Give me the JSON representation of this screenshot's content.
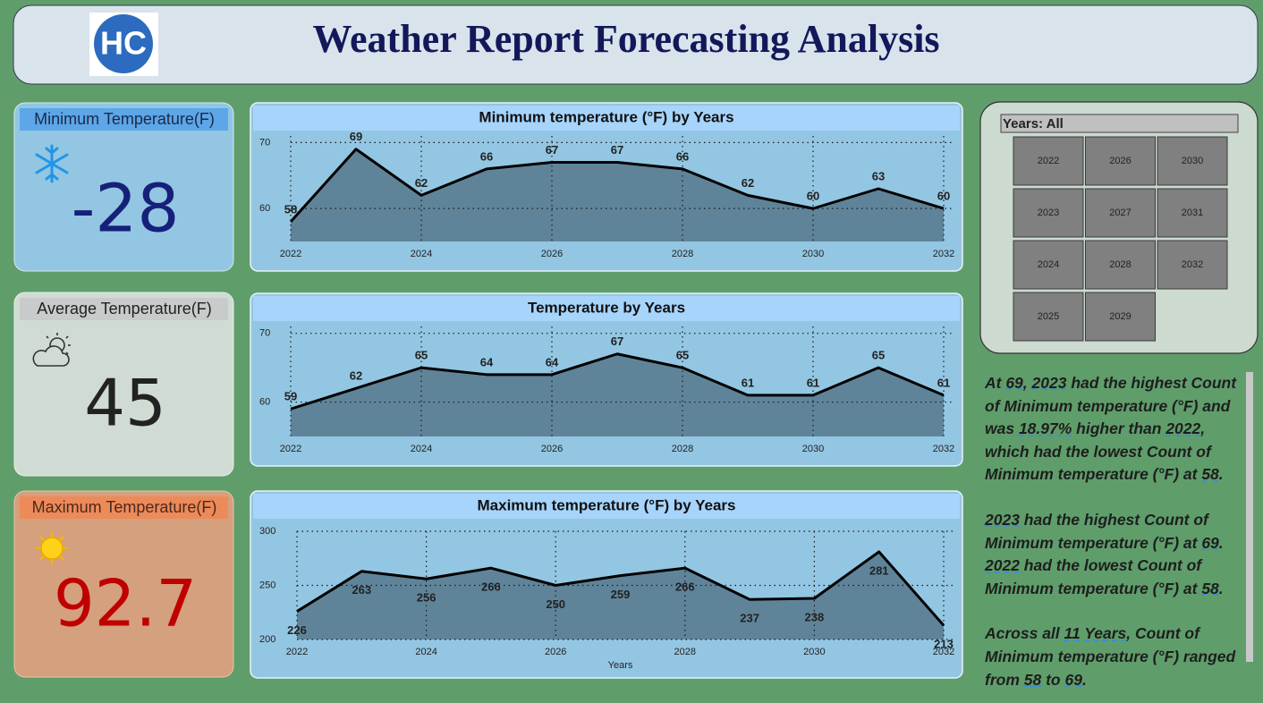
{
  "header": {
    "title": "Weather Report Forecasting Analysis",
    "logo": "HC"
  },
  "kpis": [
    {
      "label": "Minimum Temperature(F)",
      "value": -28
    },
    {
      "label": "Average Temperature(F)",
      "value": 45
    },
    {
      "label": "Maximum Temperature(F)",
      "value": 92.7
    }
  ],
  "chart_data": [
    {
      "type": "area",
      "title": "Minimum temperature (°F) by Years",
      "x": [
        2022,
        2023,
        2024,
        2025,
        2026,
        2027,
        2028,
        2029,
        2030,
        2031,
        2032
      ],
      "values": [
        58,
        69,
        62,
        66,
        67,
        67,
        66,
        62,
        60,
        63,
        60
      ],
      "color": "#5f8499",
      "line_color": "#000000",
      "xlim": [
        2022,
        2032
      ],
      "xticks": [
        2022,
        2024,
        2026,
        2028,
        2030,
        2032
      ],
      "ylim": [
        55,
        71
      ],
      "yticks": [
        60,
        70
      ],
      "grid": true,
      "label_position": "above"
    },
    {
      "type": "area",
      "title": "Temperature by Years",
      "x": [
        2022,
        2023,
        2024,
        2025,
        2026,
        2027,
        2028,
        2029,
        2030,
        2031,
        2032
      ],
      "values": [
        59,
        62,
        65,
        64,
        64,
        67,
        65,
        61,
        61,
        65,
        61
      ],
      "color": "#5f8499",
      "line_color": "#000000",
      "xlim": [
        2022,
        2032
      ],
      "xticks": [
        2022,
        2024,
        2026,
        2028,
        2030,
        2032
      ],
      "ylim": [
        55,
        71
      ],
      "yticks": [
        60,
        70
      ],
      "grid": true,
      "label_position": "above"
    },
    {
      "type": "area",
      "title": "Maximum temperature (°F) by Years",
      "xlabel": "Years",
      "x": [
        2022,
        2023,
        2024,
        2025,
        2026,
        2027,
        2028,
        2029,
        2030,
        2031,
        2032
      ],
      "values": [
        226,
        263,
        256,
        266,
        250,
        259,
        266,
        237,
        238,
        281,
        213
      ],
      "color": "#5f8499",
      "line_color": "#000000",
      "xlim": [
        2022,
        2032
      ],
      "xticks": [
        2022,
        2024,
        2026,
        2028,
        2030,
        2032
      ],
      "ylim": [
        200,
        300
      ],
      "yticks": [
        200,
        250,
        300
      ],
      "grid": true,
      "label_position": "below"
    }
  ],
  "slicer": {
    "title": "Years: All",
    "options": [
      2022,
      2023,
      2024,
      2025,
      2026,
      2027,
      2028,
      2029,
      2030,
      2031,
      2032
    ]
  },
  "narrative": [
    [
      "At ",
      {
        "text": "69",
        "underline": true
      },
      ", ",
      {
        "text": "2023",
        "underline": true
      },
      " had the highest Count of Minimum temperature (°F) and was ",
      {
        "text": "18.97%",
        "underline": true
      },
      " higher than ",
      {
        "text": "2022",
        "underline": true
      },
      ", which had the lowest Count of Minimum temperature (°F) at ",
      {
        "text": "58",
        "underline": true
      },
      "."
    ],
    [
      {
        "text": "2023",
        "underline": true
      },
      " had the highest Count of Minimum temperature (°F) at ",
      {
        "text": "69",
        "underline": true
      },
      ". ",
      {
        "text": "2022",
        "underline": true
      },
      " had the lowest Count of Minimum temperature (°F) at ",
      {
        "text": "58",
        "underline": true
      },
      "."
    ],
    [
      "Across all ",
      {
        "text": "11",
        "underline": true
      },
      " ",
      {
        "text": "Years",
        "underline": true
      },
      ", Count of Minimum temperature (°F) ranged from ",
      {
        "text": "58",
        "underline": true
      },
      " to ",
      {
        "text": "69",
        "underline": true
      },
      "."
    ]
  ]
}
